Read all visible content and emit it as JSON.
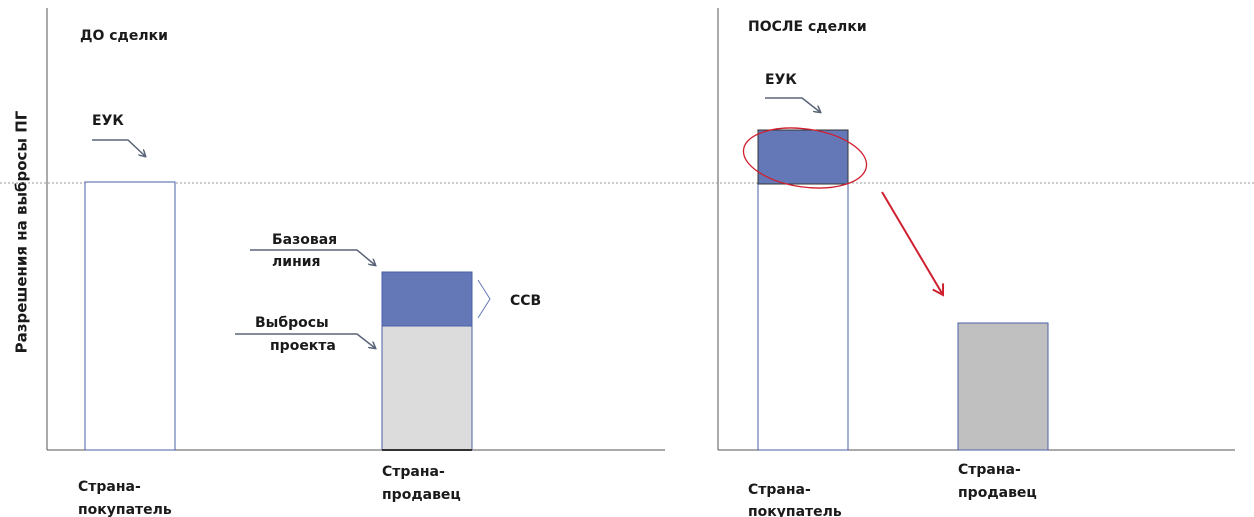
{
  "y_axis_label": "Разрешения на выбросы ПГ",
  "before": {
    "title": "ДО сделки",
    "cap_label": "ЕУК",
    "baseline_label": [
      "Базовая",
      "линия"
    ],
    "project_label": [
      "Выбросы",
      "проекта"
    ],
    "credit_label": "ССВ",
    "buyer_label": [
      "Страна-",
      "покупатель"
    ],
    "seller_label": [
      "Страна-",
      "продавец"
    ]
  },
  "after": {
    "title": "ПОСЛЕ сделки",
    "cap_label": "ЕУК",
    "buyer_label": [
      "Страна-",
      "покупатель"
    ],
    "seller_label": [
      "Страна-",
      "продавец"
    ]
  }
}
